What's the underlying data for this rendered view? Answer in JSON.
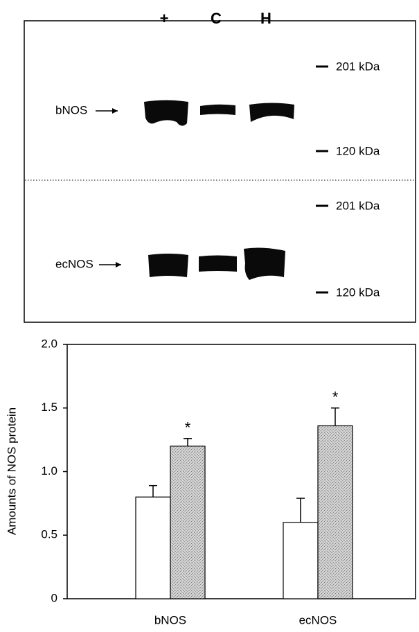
{
  "blot": {
    "lanes": [
      "+",
      "C",
      "H"
    ],
    "panels": [
      {
        "label": "bNOS",
        "markers": [
          "201 kDa",
          "120 kDa"
        ]
      },
      {
        "label": "ecNOS",
        "markers": [
          "201 kDa",
          "120 kDa"
        ]
      }
    ]
  },
  "chart_data": {
    "type": "bar",
    "ylabel": "Amounts of NOS protein",
    "categories": [
      "bNOS",
      "ecNOS"
    ],
    "series": [
      {
        "color": "#ffffff",
        "values": [
          0.8,
          0.6
        ],
        "errors": [
          0.09,
          0.19
        ]
      },
      {
        "color": "#c4c4c4",
        "values": [
          1.2,
          1.36
        ],
        "errors": [
          0.06,
          0.14
        ],
        "annotations": [
          "*",
          "*"
        ]
      }
    ],
    "ylim": [
      0,
      2
    ],
    "yticks": [
      0,
      0.5,
      {
        "value": 1,
        "label": "1.0"
      },
      1.5,
      {
        "value": 2,
        "label": "2.0"
      }
    ]
  }
}
